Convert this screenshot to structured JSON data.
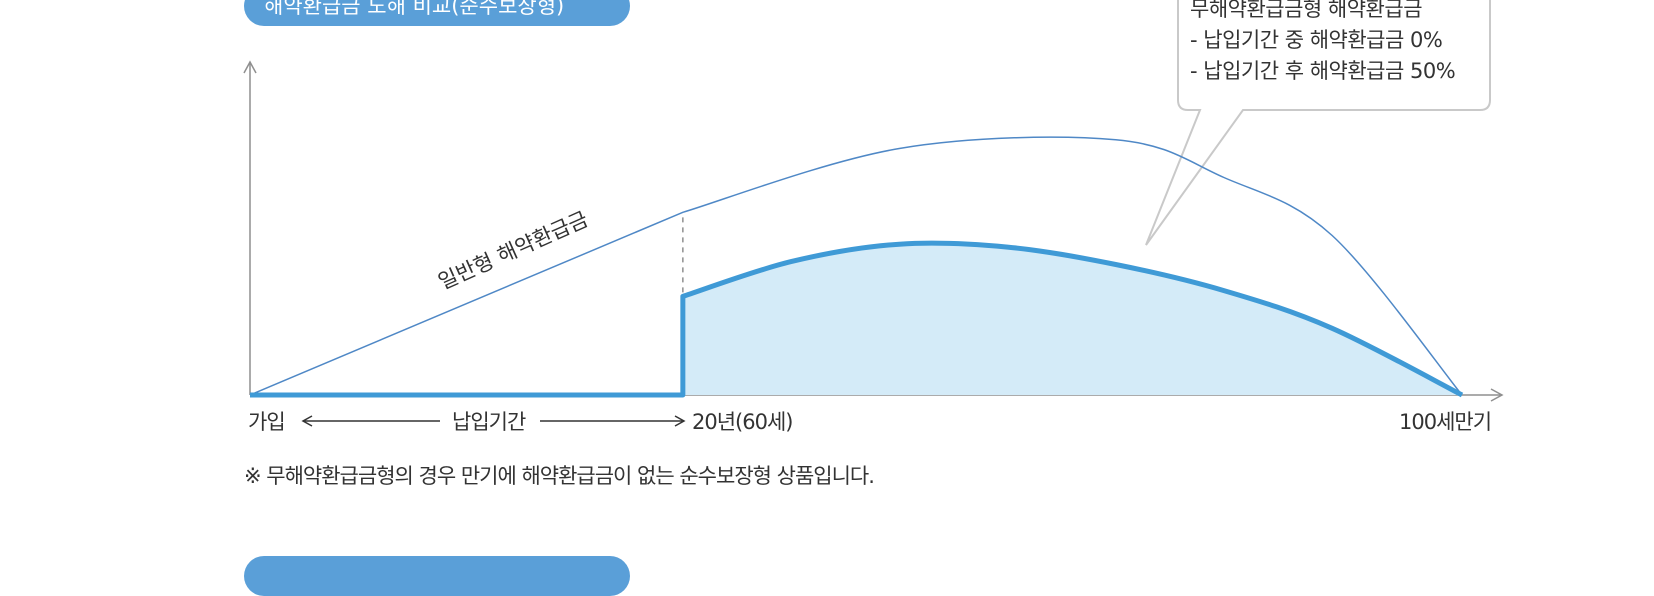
{
  "header": {
    "title": "해약환급금 도해 비교(순수보장형)",
    "next_section_title": ""
  },
  "chart_data": {
    "type": "area",
    "title": "해약환급금 도해 비교(순수보장형)",
    "xlabel": "",
    "ylabel": "",
    "x_ticks": [
      "가입",
      "20년(60세)",
      "100세만기"
    ],
    "period_label": "납입기간",
    "series": [
      {
        "name": "일반형 해약환급금",
        "style": "line",
        "x": [
          0,
          20,
          30,
          40,
          45,
          50,
          56
        ],
        "values": [
          0,
          63,
          85,
          88,
          75,
          55,
          0
        ]
      },
      {
        "name": "무해약환급금형 해약환급금",
        "style": "area",
        "x": [
          0,
          20,
          20,
          25,
          30,
          35,
          40,
          45,
          50,
          56
        ],
        "values": [
          0,
          0,
          34,
          46,
          52,
          51,
          45,
          36,
          23,
          0
        ]
      }
    ],
    "xlim": [
      0,
      56
    ],
    "ylim": [
      0,
      100
    ],
    "grid": false,
    "colors": {
      "general_line": "#4f88c6",
      "no_refund_line": "#3f9ad6",
      "no_refund_fill": "#d4ebf8",
      "axis": "#8f8f8f",
      "header_bg": "#5a9fd8"
    },
    "annotations": {
      "callout_title": "무해약환급금형 해약환급금",
      "callout_lines": [
        "- 납입기간 중 해약환급금 0%",
        "- 납입기간 후 해약환급금 50%"
      ],
      "footnote": "※ 무해약환급금형의 경우 만기에 해약환급금이 없는 순수보장형 상품입니다."
    }
  }
}
